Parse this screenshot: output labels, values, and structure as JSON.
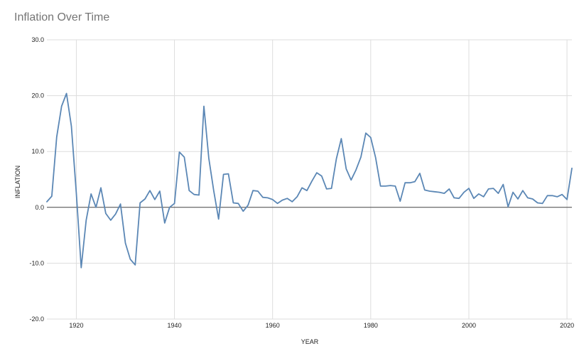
{
  "chart_data": {
    "type": "line",
    "title": "Inflation Over Time",
    "xlabel": "YEAR",
    "ylabel": "INFLATION",
    "xlim": [
      1914,
      2021
    ],
    "ylim": [
      -20,
      30
    ],
    "x_ticks": [
      1920,
      1940,
      1960,
      1980,
      2000,
      2020
    ],
    "y_ticks": [
      30,
      20,
      10,
      0,
      -10,
      -20
    ],
    "y_tick_labels": [
      "30.0",
      "20.0",
      "10.0",
      "0.0",
      "-10.0",
      "-20.0"
    ],
    "grid": true,
    "line_color": "#5b87b5",
    "series": [
      {
        "x": [
          1914,
          1915,
          1916,
          1917,
          1918,
          1919,
          1920,
          1921,
          1922,
          1923,
          1924,
          1925,
          1926,
          1927,
          1928,
          1929,
          1930,
          1931,
          1932,
          1933,
          1934,
          1935,
          1936,
          1937,
          1938,
          1939,
          1940,
          1941,
          1942,
          1943,
          1944,
          1945,
          1946,
          1947,
          1948,
          1949,
          1950,
          1951,
          1952,
          1953,
          1954,
          1955,
          1956,
          1957,
          1958,
          1959,
          1960,
          1961,
          1962,
          1963,
          1964,
          1965,
          1966,
          1967,
          1968,
          1969,
          1970,
          1971,
          1972,
          1973,
          1974,
          1975,
          1976,
          1977,
          1978,
          1979,
          1980,
          1981,
          1982,
          1983,
          1984,
          1985,
          1986,
          1987,
          1988,
          1989,
          1990,
          1991,
          1992,
          1993,
          1994,
          1995,
          1996,
          1997,
          1998,
          1999,
          2000,
          2001,
          2002,
          2003,
          2004,
          2005,
          2006,
          2007,
          2008,
          2009,
          2010,
          2011,
          2012,
          2013,
          2014,
          2015,
          2016,
          2017,
          2018,
          2019,
          2020,
          2021
        ],
        "y": [
          1.0,
          2.0,
          12.6,
          18.1,
          20.4,
          14.5,
          2.6,
          -10.8,
          -2.3,
          2.4,
          0.0,
          3.5,
          -1.1,
          -2.3,
          -1.2,
          0.6,
          -6.4,
          -9.3,
          -10.3,
          0.8,
          1.5,
          3.0,
          1.4,
          2.9,
          -2.8,
          0.0,
          0.7,
          9.9,
          9.0,
          3.0,
          2.3,
          2.2,
          18.1,
          8.8,
          3.0,
          -2.1,
          5.9,
          6.0,
          0.8,
          0.7,
          -0.7,
          0.4,
          3.0,
          2.9,
          1.8,
          1.7,
          1.4,
          0.7,
          1.3,
          1.6,
          1.0,
          1.9,
          3.5,
          3.0,
          4.7,
          6.2,
          5.6,
          3.3,
          3.4,
          8.7,
          12.3,
          6.9,
          4.9,
          6.7,
          9.0,
          13.3,
          12.5,
          8.9,
          3.8,
          3.8,
          3.9,
          3.8,
          1.1,
          4.4,
          4.4,
          4.6,
          6.1,
          3.1,
          2.9,
          2.8,
          2.7,
          2.5,
          3.3,
          1.7,
          1.6,
          2.7,
          3.4,
          1.6,
          2.4,
          1.9,
          3.3,
          3.4,
          2.5,
          4.1,
          0.1,
          2.7,
          1.5,
          3.0,
          1.7,
          1.5,
          0.8,
          0.7,
          2.1,
          2.1,
          1.9,
          2.3,
          1.4,
          7.0
        ]
      }
    ]
  }
}
